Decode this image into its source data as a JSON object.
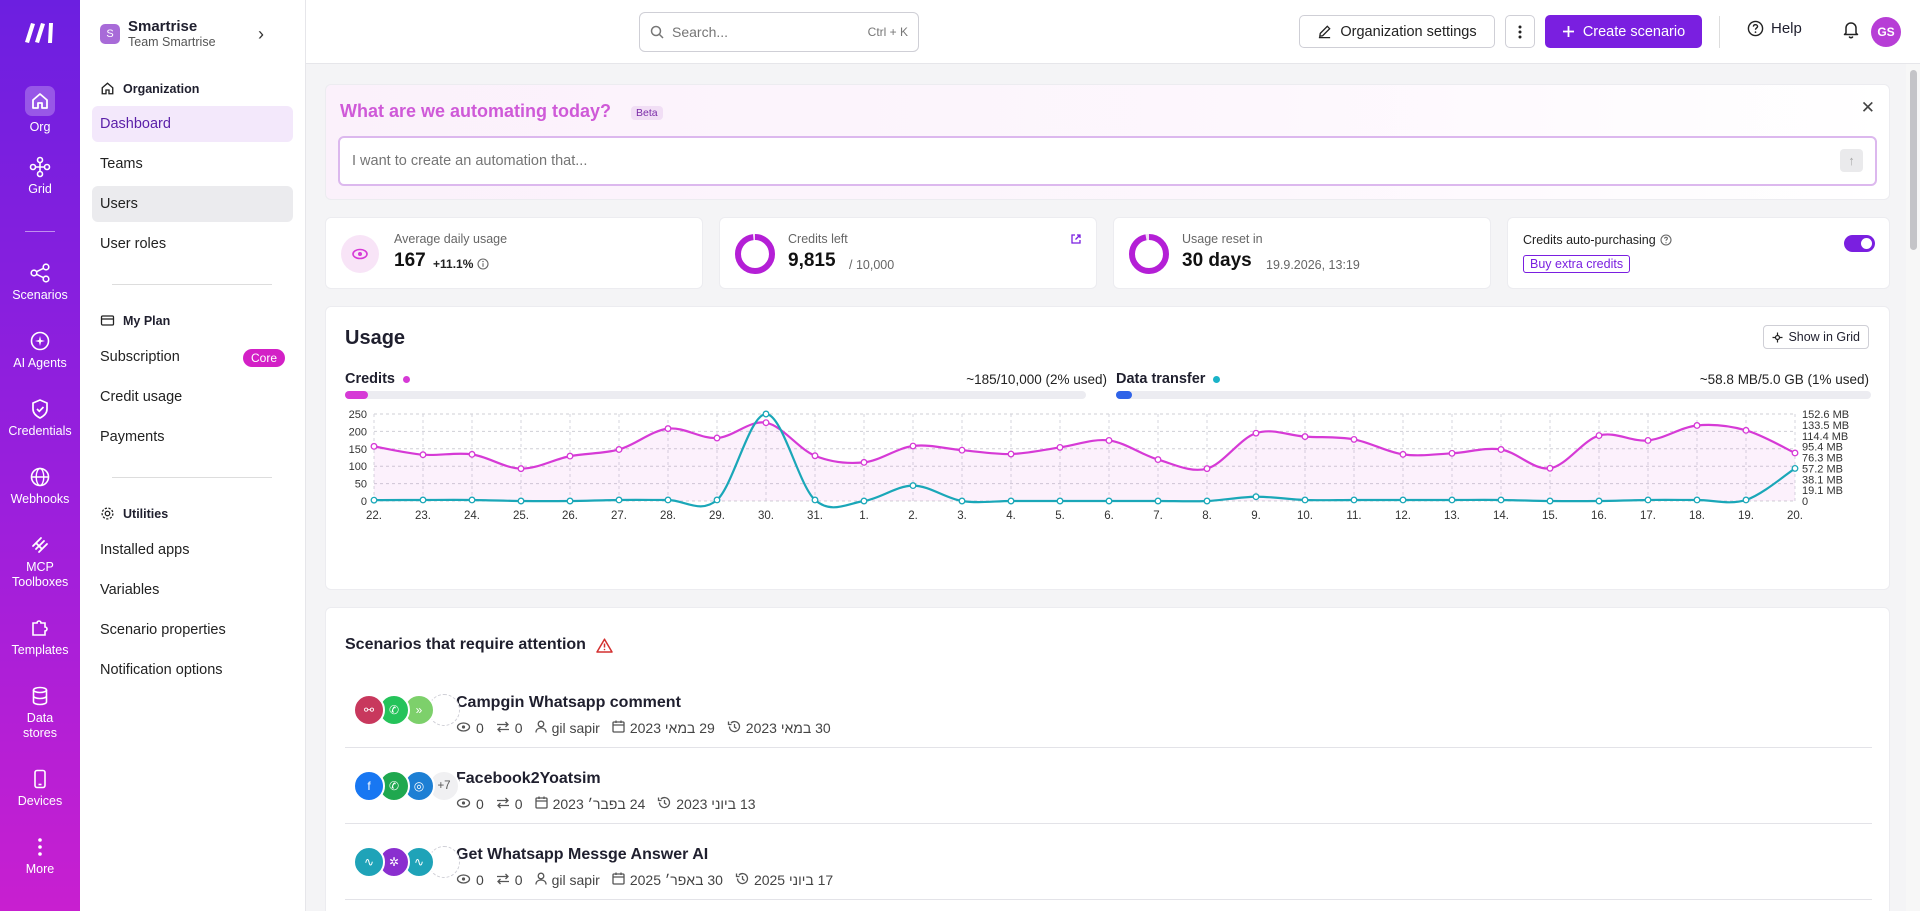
{
  "rail": {
    "items": [
      {
        "label": "Org",
        "icon": "home-icon"
      },
      {
        "label": "Grid",
        "icon": "grid-icon"
      },
      {
        "label": "Scenarios",
        "icon": "share-icon"
      },
      {
        "label": "AI Agents",
        "icon": "ai-agent-icon"
      },
      {
        "label": "Credentials",
        "icon": "shield-icon"
      },
      {
        "label": "Webhooks",
        "icon": "globe-icon"
      },
      {
        "label": "MCP Toolboxes",
        "icon": "mcp-icon"
      },
      {
        "label": "Templates",
        "icon": "puzzle-icon"
      },
      {
        "label": "Data stores",
        "icon": "database-icon"
      },
      {
        "label": "Devices",
        "icon": "phone-icon"
      },
      {
        "label": "More",
        "icon": "more-vertical-icon"
      }
    ]
  },
  "sidebar": {
    "org_initial": "S",
    "org_name": "Smartrise",
    "org_team": "Team Smartrise",
    "section_org": "Organization",
    "org_items": [
      "Dashboard",
      "Teams",
      "Users",
      "User roles"
    ],
    "section_plan": "My Plan",
    "plan_items": [
      "Subscription",
      "Credit usage",
      "Payments"
    ],
    "plan_badge": "Core",
    "section_utils": "Utilities",
    "util_items": [
      "Installed apps",
      "Variables",
      "Scenario properties",
      "Notification options"
    ]
  },
  "topbar": {
    "search_placeholder": "Search...",
    "search_shortcut": "Ctrl + K",
    "org_settings_label": "Organization settings",
    "create_label": "Create scenario",
    "help_label": "Help",
    "avatar_initials": "GS"
  },
  "ai_prompt": {
    "title": "What are we automating today?",
    "badge": "Beta",
    "placeholder": "I want to create an automation that..."
  },
  "stats": {
    "avg_label": "Average daily usage",
    "avg_value": "167",
    "avg_change": "+11.1%",
    "credits_label": "Credits left",
    "credits_value": "9,815",
    "credits_total": "/ 10,000",
    "credits_fraction": 0.9815,
    "reset_label": "Usage reset in",
    "reset_value": "30 days",
    "reset_date": "19.9.2026, 13:19",
    "reset_fraction": 0.97,
    "auto_label": "Credits auto-purchasing",
    "auto_enabled": true,
    "buy_label": "Buy extra credits"
  },
  "usage": {
    "title": "Usage",
    "show_grid_label": "Show in Grid",
    "credits_label": "Credits",
    "credits_summary": "~185/10,000 (2% used)",
    "credits_used_fraction": 0.02,
    "transfer_label": "Data transfer",
    "transfer_summary": "~58.8 MB/5.0 GB (1% used)",
    "transfer_used_fraction": 0.01,
    "credits_color": "#d63ad6",
    "transfer_color": "#1aa7b8"
  },
  "chart_data": {
    "type": "line",
    "categories": [
      "22.",
      "23.",
      "24.",
      "25.",
      "26.",
      "27.",
      "28.",
      "29.",
      "30.",
      "31.",
      "1.",
      "2.",
      "3.",
      "4.",
      "5.",
      "6.",
      "7.",
      "8.",
      "9.",
      "10.",
      "11.",
      "12.",
      "13.",
      "14.",
      "15.",
      "16.",
      "17.",
      "18.",
      "19.",
      "20."
    ],
    "series": [
      {
        "name": "Credits",
        "axis": "left",
        "values": [
          157,
          133,
          134,
          93,
          129,
          148,
          208,
          181,
          225,
          130,
          111,
          158,
          146,
          135,
          154,
          174,
          119,
          93,
          195,
          185,
          177,
          134,
          137,
          148,
          94,
          188,
          174,
          217,
          203,
          138
        ]
      },
      {
        "name": "Data transfer",
        "axis": "right",
        "values": [
          1.5,
          1.8,
          1.8,
          0.0,
          0.0,
          1.8,
          1.8,
          1.8,
          152.6,
          1.8,
          0.0,
          27.0,
          0.0,
          0.0,
          0.0,
          0.0,
          0.0,
          0.0,
          7.5,
          1.8,
          1.8,
          1.8,
          1.8,
          1.8,
          0.0,
          0.0,
          1.8,
          1.8,
          1.8,
          57.2
        ]
      }
    ],
    "y_ticks_left": [
      "250",
      "200",
      "150",
      "100",
      "50",
      "0"
    ],
    "y_ticks_right": [
      "152.6 MB",
      "133.5 MB",
      "114.4 MB",
      "95.4 MB",
      "76.3 MB",
      "57.2 MB",
      "38.1 MB",
      "19.1 MB",
      "0"
    ],
    "ylim_left": [
      0,
      250
    ],
    "ylim_right_mb": [
      0,
      152.6
    ],
    "grid": true
  },
  "attention": {
    "title": "Scenarios that require attention",
    "rows": [
      {
        "name": "Campgin Whatsapp comment",
        "views": "0",
        "transfers": "0",
        "owner": "gil sapir",
        "created": "29 במאי 2023",
        "updated": "30 במאי 2023",
        "icons": [
          {
            "icon": "webhook-icon",
            "color": "#c8385d"
          },
          {
            "icon": "whatsapp-icon",
            "color": "#25c35a"
          },
          {
            "icon": "forward-icon",
            "color": "#7dd06b"
          }
        ],
        "more": ""
      },
      {
        "name": "Facebook2Yoatsim",
        "views": "0",
        "transfers": "0",
        "owner": "",
        "created": "24 בפבר׳ 2023",
        "updated": "13 ביוני 2023",
        "icons": [
          {
            "icon": "facebook-icon",
            "color": "#1877f2"
          },
          {
            "icon": "phone-icon",
            "color": "#1fa84f"
          },
          {
            "icon": "http-icon",
            "color": "#1d7fd4"
          }
        ],
        "more": "+7"
      },
      {
        "name": "Get Whatsapp Messge Answer AI",
        "views": "0",
        "transfers": "0",
        "owner": "gil sapir",
        "created": "30 באפר׳ 2025",
        "updated": "17 ביוני 2025",
        "icons": [
          {
            "icon": "pulse-icon",
            "color": "#1fa3b8"
          },
          {
            "icon": "ai-icon",
            "color": "#8a2fcf"
          },
          {
            "icon": "pulse-icon",
            "color": "#1fa3b8"
          }
        ],
        "more": ""
      }
    ]
  }
}
